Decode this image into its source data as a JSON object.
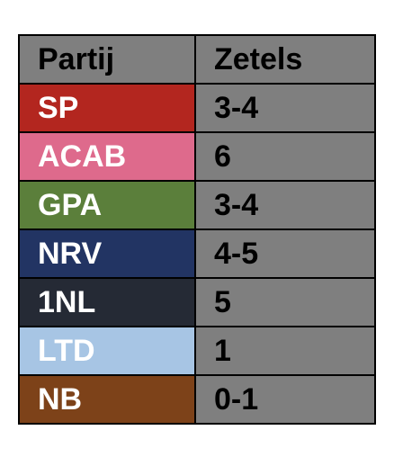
{
  "table": {
    "headers": {
      "party": "Partij",
      "seats": "Zetels"
    },
    "rows": [
      {
        "party": "SP",
        "seats": "3-4",
        "color": "#b3261f"
      },
      {
        "party": "ACAB",
        "seats": "6",
        "color": "#de6a8c"
      },
      {
        "party": "GPA",
        "seats": "3-4",
        "color": "#5b7f3b"
      },
      {
        "party": "NRV",
        "seats": "4-5",
        "color": "#223463"
      },
      {
        "party": "1NL",
        "seats": "5",
        "color": "#252a35"
      },
      {
        "party": "LTD",
        "seats": "1",
        "color": "#a7c5e4"
      },
      {
        "party": "NB",
        "seats": "0-1",
        "color": "#7d4219"
      }
    ],
    "header_bg": "#7f7f7f",
    "seats_bg": "#7f7f7f"
  }
}
